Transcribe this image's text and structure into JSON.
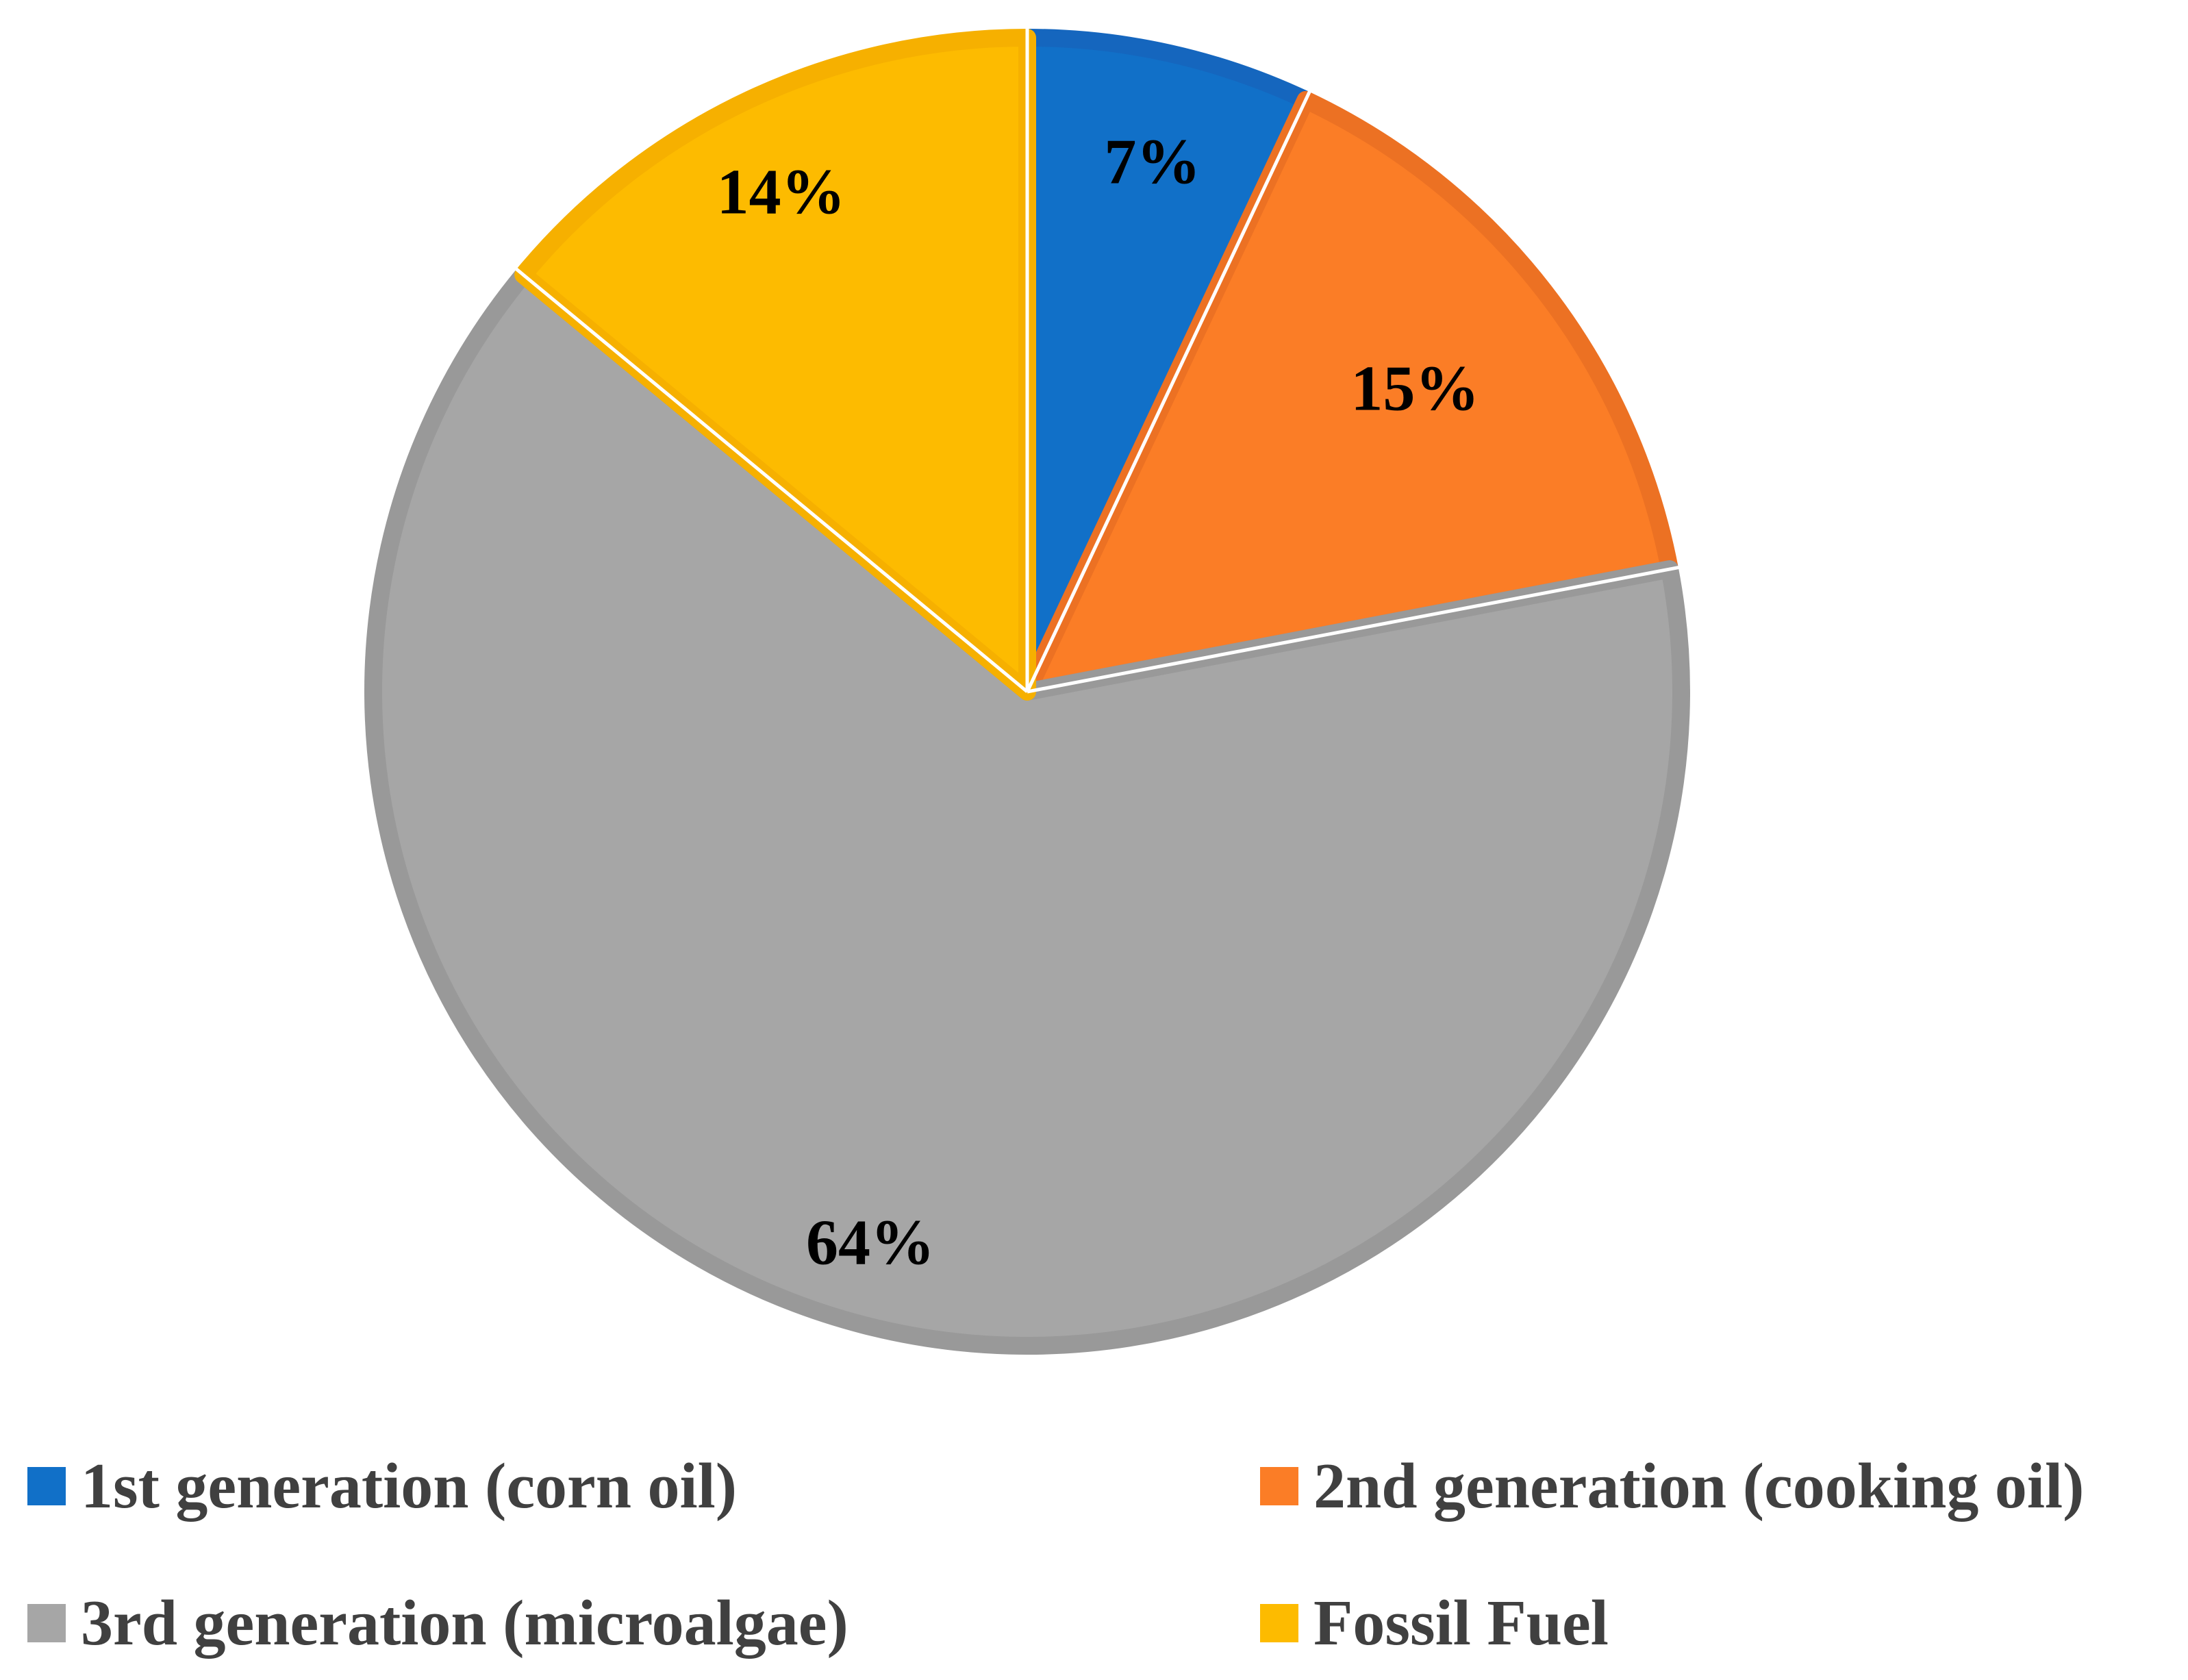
{
  "chart_data": {
    "type": "pie",
    "title": "",
    "categories": [
      "1st generation (corn oil)",
      "2nd generation (cooking oil)",
      "3rd generation (microalgae)",
      "Fossil Fuel"
    ],
    "values": [
      7,
      15,
      64,
      14
    ],
    "labels": [
      "7%",
      "15%",
      "64%",
      "14%"
    ],
    "colors": [
      "#1170C8",
      "#FB7D26",
      "#A6A6A6",
      "#FDBB00"
    ],
    "border_colors": [
      "#1566BE",
      "#EC7123",
      "#999999",
      "#F6B000"
    ],
    "start_angle_deg": 0,
    "direction": "clockwise",
    "legend_position": "bottom"
  }
}
